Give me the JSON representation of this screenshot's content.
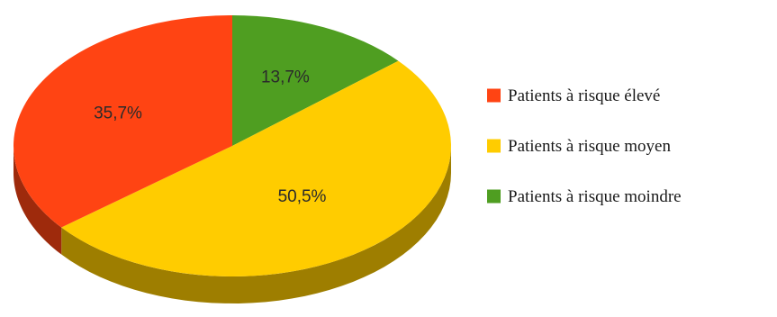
{
  "chart_data": {
    "type": "pie",
    "title": "",
    "legend_position": "right",
    "slices": [
      {
        "label": "Patients à risque élevé",
        "value": 35.7,
        "value_label": "35,7%",
        "color": "#ff4413"
      },
      {
        "label": "Patients à risque moyen",
        "value": 50.5,
        "value_label": "50,5%",
        "color": "#ffcc00"
      },
      {
        "label": "Patients à risque moindre",
        "value": 13.7,
        "value_label": "13,7%",
        "color": "#4f9e21"
      }
    ]
  }
}
